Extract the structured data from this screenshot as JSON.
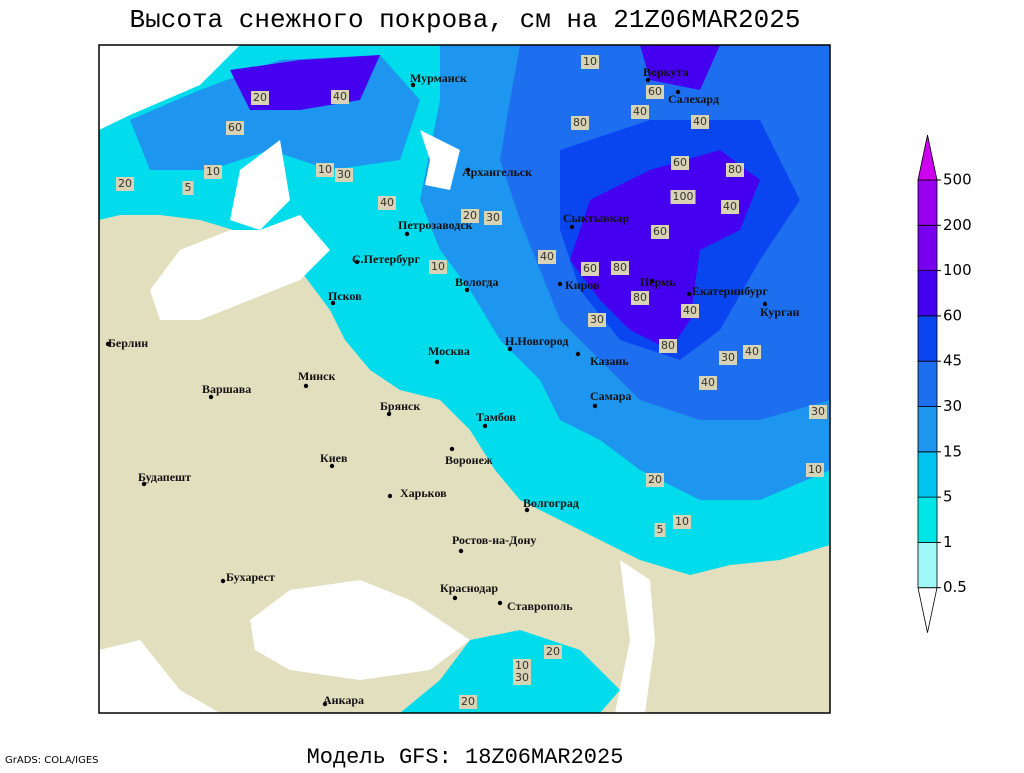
{
  "title": "Высота снежного покрова, см на 21Z06MAR2025",
  "footer": "Модель GFS: 18Z06MAR2025",
  "credit": "GrADS: COLA/IGES",
  "cities": [
    "Мурманск",
    "Воркута",
    "Салехард",
    "Архангельск",
    "Петрозаводск",
    "Сыктывкар",
    "С.Петербург",
    "Вологда",
    "Киров",
    "Пермь",
    "Екатеринбург",
    "Курган",
    "Псков",
    "Н.Новгород",
    "Москва",
    "Казань",
    "Берлин",
    "Минск",
    "Варшава",
    "Брянск",
    "Тамбов",
    "Самара",
    "Киев",
    "Воронеж",
    "Будапешт",
    "Харьков",
    "Волгоград",
    "Ростов-на-Дону",
    "Бухарест",
    "Краснодар",
    "Ставрополь",
    "Анкара"
  ],
  "contour_labels": [
    10,
    20,
    40,
    60,
    80,
    40,
    60,
    40,
    80,
    60,
    100,
    40,
    20,
    30,
    40,
    10,
    40,
    60,
    80,
    60,
    80,
    30,
    40,
    80,
    30,
    40,
    40,
    30,
    20,
    10,
    10,
    5,
    10,
    30,
    20,
    20,
    10,
    20,
    5,
    30,
    10
  ],
  "legend": {
    "levels": [
      0.5,
      1,
      5,
      15,
      30,
      45,
      60,
      100,
      200,
      500
    ],
    "colors": [
      "#ffffff",
      "#a0f8f8",
      "#00e6e6",
      "#00c4f0",
      "#1e96f0",
      "#1e6ef0",
      "#0a46f0",
      "#4600f0",
      "#7800ee",
      "#9a00f0",
      "#cc00ee"
    ]
  }
}
